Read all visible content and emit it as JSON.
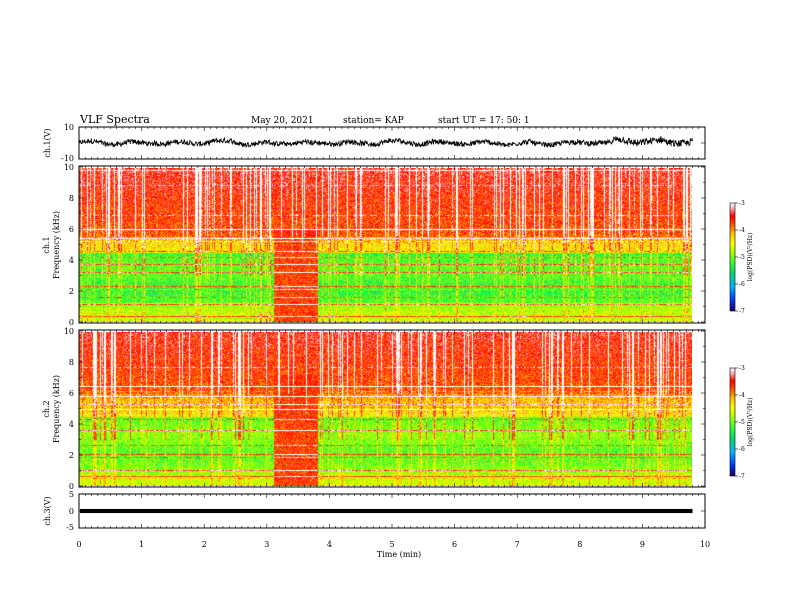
{
  "header": {
    "title": "VLF Spectra",
    "date": "May 20, 2021",
    "station": "station= KAP",
    "start": "start  UT  =   17: 50: 1"
  },
  "colors": {
    "spectrum_stops": [
      "#1a0060",
      "#0033ff",
      "#00b4ff",
      "#00dd66",
      "#33ff33",
      "#b4ff00",
      "#ffff00",
      "#ffbb00",
      "#ff5500",
      "#ff0000",
      "#ffaaaa",
      "#ffffff"
    ],
    "background": "#ffffff",
    "trace": "#000000"
  },
  "chart_data": [
    {
      "id": "ch1-waveform",
      "type": "line",
      "ylabel": "ch.1(V)",
      "ylim": [
        -10,
        10
      ],
      "yticks": [
        "10",
        "-10"
      ],
      "xlim": [
        0,
        10
      ],
      "x_extent": [
        0,
        9.8
      ],
      "amplitude_note": "noisy trace roughly within -4..4 V"
    },
    {
      "id": "ch1-spectrogram",
      "type": "heatmap",
      "ylabel": "ch.1\nFrequency (kHz)",
      "ylim": [
        0,
        10
      ],
      "yticks": [
        "0",
        "2",
        "4",
        "6",
        "8",
        "10"
      ],
      "xlim": [
        0,
        10
      ],
      "x_extent": [
        0,
        9.8
      ],
      "colorbar": {
        "label": "log(PSD)(V²/Hz)",
        "range": [
          -7,
          -3
        ],
        "ticks": [
          "-3",
          "-4",
          "-5",
          "-6",
          "-7"
        ]
      },
      "features": {
        "strong_high_band_above_kHz": 5.5,
        "burst_time_min": [
          3.12,
          3.82
        ],
        "horizontal_lines_kHz": [
          0.3,
          1.1,
          1.6,
          2.1,
          2.3,
          3.2,
          3.7,
          4.2,
          4.6,
          5.2,
          5.4,
          6.0
        ]
      }
    },
    {
      "id": "ch2-spectrogram",
      "type": "heatmap",
      "ylabel": "ch.2\nFrequency (kHz)",
      "ylim": [
        0,
        10
      ],
      "yticks": [
        "0",
        "2",
        "4",
        "6",
        "8",
        "10"
      ],
      "xlim": [
        0,
        10
      ],
      "x_extent": [
        0,
        9.8
      ],
      "colorbar": {
        "label": "log(PSD)(V²/Hz)",
        "range": [
          -7,
          -3
        ],
        "ticks": [
          "-3",
          "-4",
          "-5",
          "-6",
          "-7"
        ]
      },
      "features": {
        "strong_high_band_above_kHz": 6.0,
        "burst_time_min": [
          3.12,
          3.82
        ],
        "horizontal_lines_kHz": [
          0.6,
          1.0,
          1.8,
          2.0,
          2.6,
          3.6,
          4.3,
          5.0,
          5.3,
          5.8,
          6.5
        ]
      }
    },
    {
      "id": "ch3-waveform",
      "type": "line",
      "ylabel": "ch.3(V)",
      "ylim": [
        -5,
        5
      ],
      "yticks": [
        "5",
        "0",
        "-5"
      ],
      "xlim": [
        0,
        10
      ],
      "x_extent": [
        0,
        9.8
      ],
      "amplitude_note": "dense band roughly within -0.6..0.6 V around 0"
    }
  ],
  "xaxis": {
    "label": "Time (min)",
    "ticks": [
      "0",
      "1",
      "2",
      "3",
      "4",
      "5",
      "6",
      "7",
      "8",
      "9",
      "10"
    ]
  }
}
